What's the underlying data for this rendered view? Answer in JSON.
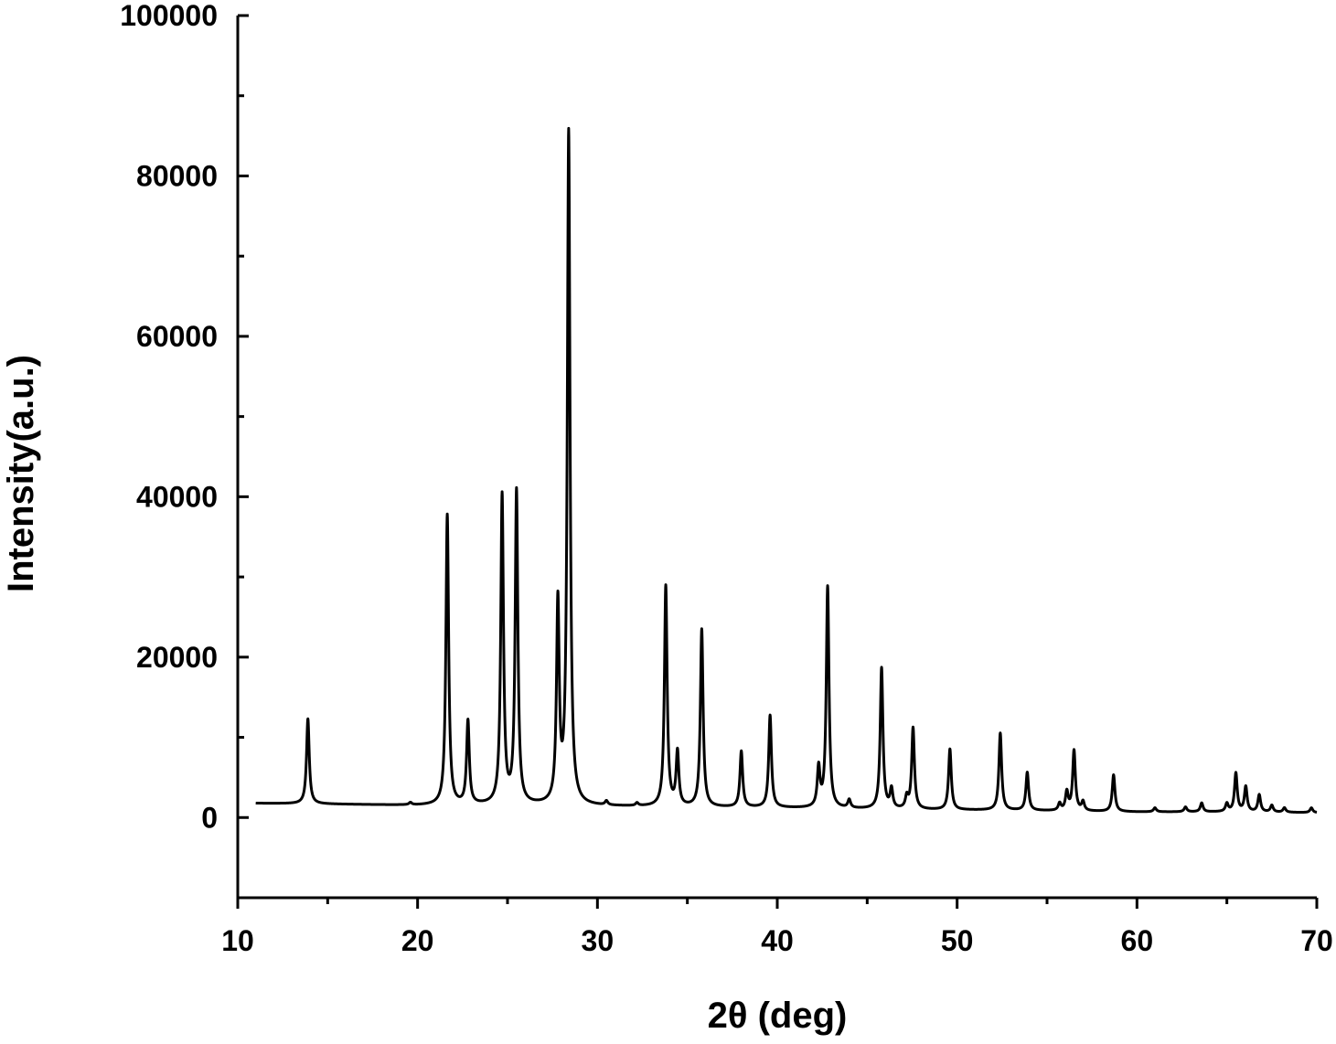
{
  "chart_data": {
    "type": "line",
    "title": "",
    "xlabel": "2θ (deg)",
    "ylabel": "Intensity(a.u.)",
    "xlim": [
      10,
      70
    ],
    "ylim": [
      -10000,
      100000
    ],
    "x_ticks": [
      10,
      20,
      30,
      40,
      50,
      60,
      70
    ],
    "y_ticks": [
      0,
      20000,
      40000,
      60000,
      80000,
      100000
    ],
    "x_tick_labels": [
      "10",
      "20",
      "30",
      "40",
      "50",
      "60",
      "70"
    ],
    "y_tick_labels": [
      "0",
      "20000",
      "40000",
      "60000",
      "80000",
      "100000"
    ],
    "grid": false,
    "legend": "none",
    "line_color": "#000000",
    "baseline": [
      [
        10,
        1800
      ],
      [
        14,
        1700
      ],
      [
        20,
        1500
      ],
      [
        26,
        1500
      ],
      [
        30,
        1400
      ],
      [
        34,
        1300
      ],
      [
        40,
        1200
      ],
      [
        46,
        1000
      ],
      [
        52,
        900
      ],
      [
        56,
        800
      ],
      [
        60,
        700
      ],
      [
        66,
        700
      ],
      [
        70,
        600
      ]
    ],
    "peaks": [
      {
        "x": 13.9,
        "y": 12300
      },
      {
        "x": 19.6,
        "y": 1800
      },
      {
        "x": 21.65,
        "y": 37700
      },
      {
        "x": 22.8,
        "y": 11900
      },
      {
        "x": 24.7,
        "y": 40000
      },
      {
        "x": 25.5,
        "y": 40500
      },
      {
        "x": 27.8,
        "y": 26300
      },
      {
        "x": 28.4,
        "y": 85300
      },
      {
        "x": 30.5,
        "y": 1900
      },
      {
        "x": 32.2,
        "y": 1700
      },
      {
        "x": 33.8,
        "y": 28800
      },
      {
        "x": 34.45,
        "y": 8000
      },
      {
        "x": 35.8,
        "y": 23400
      },
      {
        "x": 38.0,
        "y": 8200
      },
      {
        "x": 39.6,
        "y": 12700
      },
      {
        "x": 42.3,
        "y": 6000
      },
      {
        "x": 42.8,
        "y": 28700
      },
      {
        "x": 44.0,
        "y": 2100
      },
      {
        "x": 45.8,
        "y": 18600
      },
      {
        "x": 46.35,
        "y": 3400
      },
      {
        "x": 47.2,
        "y": 2400
      },
      {
        "x": 47.55,
        "y": 11100
      },
      {
        "x": 49.6,
        "y": 8500
      },
      {
        "x": 52.4,
        "y": 10500
      },
      {
        "x": 53.9,
        "y": 5600
      },
      {
        "x": 55.7,
        "y": 1700
      },
      {
        "x": 56.1,
        "y": 3100
      },
      {
        "x": 56.5,
        "y": 8300
      },
      {
        "x": 57.0,
        "y": 1900
      },
      {
        "x": 58.7,
        "y": 5300
      },
      {
        "x": 61.0,
        "y": 1200
      },
      {
        "x": 62.7,
        "y": 1300
      },
      {
        "x": 63.6,
        "y": 1800
      },
      {
        "x": 65.0,
        "y": 1700
      },
      {
        "x": 65.5,
        "y": 5500
      },
      {
        "x": 66.05,
        "y": 3800
      },
      {
        "x": 66.8,
        "y": 2800
      },
      {
        "x": 67.5,
        "y": 1500
      },
      {
        "x": 68.2,
        "y": 1200
      },
      {
        "x": 69.7,
        "y": 1200
      }
    ]
  }
}
